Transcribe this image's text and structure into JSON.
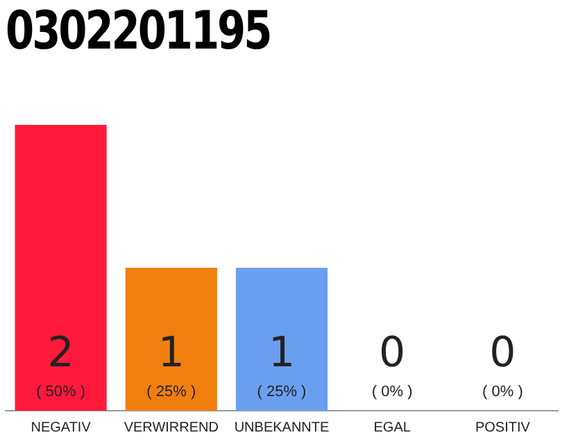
{
  "chart_data": {
    "type": "bar",
    "title": "0302201195",
    "categories": [
      "NEGATIV",
      "VERWIRREND",
      "UNBEKANNTE",
      "EGAL",
      "POSITIV"
    ],
    "values": [
      2,
      1,
      1,
      0,
      0
    ],
    "colors": [
      "#ff1a3c",
      "#f07f10",
      "#6a9ff0",
      "#dddddd",
      "#dddddd"
    ],
    "tick_labels": "x",
    "grid": false,
    "legend": false,
    "value_labels": [
      "2",
      "1",
      "1",
      "0",
      "0"
    ],
    "annotations": [
      {
        "text": "( 50% )",
        "x": "NEGATIV",
        "y": 0
      },
      {
        "text": "( 25% )",
        "x": "VERWIRREND",
        "y": 0
      },
      {
        "text": "( 25% )",
        "x": "UNBEKANNTE",
        "y": 0
      },
      {
        "text": "( 0% )",
        "x": "EGAL",
        "y": 0
      },
      {
        "text": "( 0% )",
        "x": "POSITIV",
        "y": 0
      }
    ]
  }
}
